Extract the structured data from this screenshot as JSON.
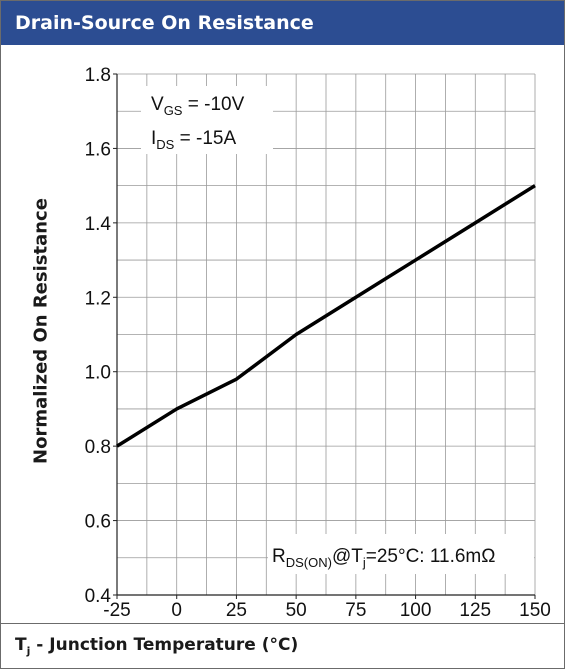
{
  "header": {
    "title": "Drain-Source On Resistance"
  },
  "footer": {
    "label_main": "T",
    "label_sub": "j",
    "label_rest": " - Junction Temperature (°C)"
  },
  "chart_data": {
    "type": "line",
    "title": "Drain-Source On Resistance",
    "xlabel": "Tj - Junction Temperature (°C)",
    "ylabel": "Normalized On Resistance",
    "xlim": [
      -25,
      150
    ],
    "ylim": [
      0.4,
      1.8
    ],
    "x_ticks": [
      -25,
      0,
      25,
      50,
      75,
      100,
      125,
      150
    ],
    "y_ticks": [
      "0.4",
      "0.6",
      "0.8",
      "1.0",
      "1.2",
      "1.4",
      "1.6",
      "1.8"
    ],
    "grid": true,
    "series": [
      {
        "x": [
          -25,
          0,
          25,
          50,
          75,
          100,
          125,
          150
        ],
        "y": [
          0.8,
          0.9,
          0.98,
          1.1,
          1.2,
          1.3,
          1.4,
          1.5
        ],
        "color": "#000000"
      }
    ],
    "annotations": {
      "vgs": {
        "main": "V",
        "sub": "GS",
        "rest": " = -10V"
      },
      "ids": {
        "main": "I",
        "sub": "DS",
        "rest": " = -15A"
      },
      "rds": {
        "main": "R",
        "sub": "DS(ON)",
        "mid": "@T",
        "sub2": "j",
        "rest": "=25°C: 11.6mΩ"
      }
    }
  }
}
